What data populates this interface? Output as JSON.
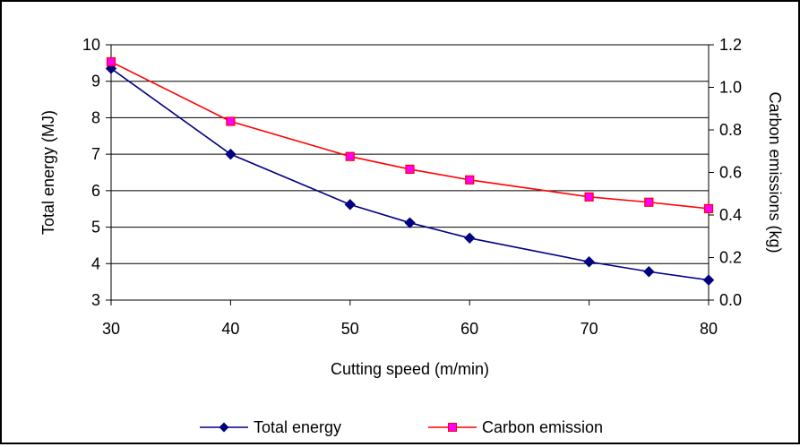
{
  "chart_data": {
    "type": "line",
    "x": [
      30,
      40,
      50,
      55,
      60,
      70,
      75,
      80
    ],
    "xlabel": "Cutting speed (m/min)",
    "ylabel": "Total energy (MJ)",
    "y2label": "Carbon emissions (kg)",
    "xlim": [
      30,
      80
    ],
    "ylim": [
      3,
      10
    ],
    "y2lim": [
      0.0,
      1.2
    ],
    "x_ticks": [
      "30",
      "40",
      "50",
      "60",
      "70",
      "80"
    ],
    "x_tick_values": [
      30,
      40,
      50,
      60,
      70,
      80
    ],
    "y_ticks": [
      "3",
      "4",
      "5",
      "6",
      "7",
      "8",
      "9",
      "10"
    ],
    "y_tick_values": [
      3,
      4,
      5,
      6,
      7,
      8,
      9,
      10
    ],
    "y2_ticks": [
      "0.0",
      "0.2",
      "0.4",
      "0.6",
      "0.8",
      "1.0",
      "1.2"
    ],
    "y2_tick_values": [
      0.0,
      0.2,
      0.4,
      0.6,
      0.8,
      1.0,
      1.2
    ],
    "grid": "horizontal",
    "legend_position": "bottom",
    "series": [
      {
        "name": "Total energy",
        "axis": "left",
        "marker": "diamond",
        "color": "#000080",
        "values": [
          9.35,
          7.0,
          5.62,
          5.12,
          4.7,
          4.05,
          3.78,
          3.55
        ]
      },
      {
        "name": "Carbon emission",
        "axis": "right",
        "marker": "square",
        "color": "#ff0000",
        "marker_fill": "#ff00ff",
        "values": [
          1.12,
          0.84,
          0.675,
          0.615,
          0.565,
          0.485,
          0.46,
          0.43
        ]
      }
    ]
  }
}
